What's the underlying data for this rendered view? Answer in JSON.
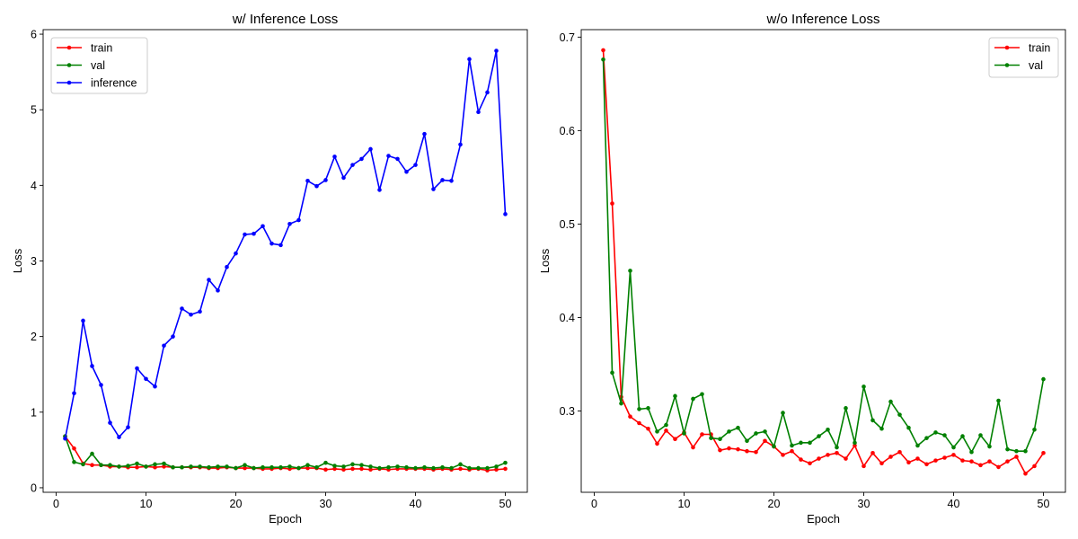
{
  "chart_data": [
    {
      "type": "line",
      "title": "w/ Inference Loss",
      "xlabel": "Epoch",
      "ylabel": "Loss",
      "xlim": [
        -1.45,
        52.45
      ],
      "ylim": [
        -0.06,
        6.06
      ],
      "xticks": [
        0,
        10,
        20,
        30,
        40,
        50
      ],
      "yticks": [
        0,
        1,
        2,
        3,
        4,
        5,
        6
      ],
      "grid": false,
      "legend_position": "top-left",
      "x": [
        1,
        2,
        3,
        4,
        5,
        6,
        7,
        8,
        9,
        10,
        11,
        12,
        13,
        14,
        15,
        16,
        17,
        18,
        19,
        20,
        21,
        22,
        23,
        24,
        25,
        26,
        27,
        28,
        29,
        30,
        31,
        32,
        33,
        34,
        35,
        36,
        37,
        38,
        39,
        40,
        41,
        42,
        43,
        44,
        45,
        46,
        47,
        48,
        49,
        50
      ],
      "series": [
        {
          "name": "train",
          "color": "#ff0000",
          "values": [
            0.68,
            0.52,
            0.32,
            0.3,
            0.3,
            0.28,
            0.28,
            0.27,
            0.27,
            0.28,
            0.27,
            0.28,
            0.27,
            0.27,
            0.27,
            0.27,
            0.26,
            0.26,
            0.27,
            0.26,
            0.26,
            0.26,
            0.25,
            0.25,
            0.26,
            0.25,
            0.26,
            0.26,
            0.26,
            0.24,
            0.25,
            0.24,
            0.25,
            0.25,
            0.24,
            0.25,
            0.24,
            0.25,
            0.25,
            0.25,
            0.25,
            0.24,
            0.25,
            0.24,
            0.25,
            0.24,
            0.25,
            0.23,
            0.24,
            0.25
          ]
        },
        {
          "name": "val",
          "color": "#008000",
          "values": [
            0.68,
            0.34,
            0.31,
            0.45,
            0.3,
            0.3,
            0.28,
            0.29,
            0.32,
            0.28,
            0.31,
            0.32,
            0.27,
            0.27,
            0.28,
            0.28,
            0.27,
            0.28,
            0.28,
            0.26,
            0.3,
            0.26,
            0.27,
            0.27,
            0.27,
            0.28,
            0.26,
            0.3,
            0.27,
            0.33,
            0.29,
            0.28,
            0.31,
            0.3,
            0.28,
            0.26,
            0.27,
            0.28,
            0.27,
            0.26,
            0.27,
            0.26,
            0.27,
            0.26,
            0.31,
            0.26,
            0.26,
            0.26,
            0.28,
            0.33
          ]
        },
        {
          "name": "inference",
          "color": "#0000ff",
          "values": [
            0.65,
            1.25,
            2.21,
            1.61,
            1.36,
            0.86,
            0.67,
            0.8,
            1.58,
            1.44,
            1.34,
            1.88,
            2.0,
            2.37,
            2.29,
            2.33,
            2.75,
            2.61,
            2.92,
            3.1,
            3.35,
            3.36,
            3.46,
            3.23,
            3.21,
            3.49,
            3.54,
            4.06,
            3.99,
            4.07,
            4.38,
            4.1,
            4.27,
            4.35,
            4.48,
            3.94,
            4.39,
            4.35,
            4.18,
            4.27,
            4.68,
            3.95,
            4.07,
            4.06,
            4.54,
            5.67,
            4.97,
            5.23,
            5.78,
            3.62
          ]
        }
      ]
    },
    {
      "type": "line",
      "title": "w/o Inference Loss",
      "xlabel": "Epoch",
      "ylabel": "Loss",
      "xlim": [
        -1.45,
        52.45
      ],
      "ylim": [
        0.213,
        0.708
      ],
      "xticks": [
        0,
        10,
        20,
        30,
        40,
        50
      ],
      "yticks": [
        0.3,
        0.4,
        0.5,
        0.6,
        0.7
      ],
      "grid": false,
      "legend_position": "top-right",
      "x": [
        1,
        2,
        3,
        4,
        5,
        6,
        7,
        8,
        9,
        10,
        11,
        12,
        13,
        14,
        15,
        16,
        17,
        18,
        19,
        20,
        21,
        22,
        23,
        24,
        25,
        26,
        27,
        28,
        29,
        30,
        31,
        32,
        33,
        34,
        35,
        36,
        37,
        38,
        39,
        40,
        41,
        42,
        43,
        44,
        45,
        46,
        47,
        48,
        49,
        50
      ],
      "series": [
        {
          "name": "train",
          "color": "#ff0000",
          "values": [
            0.686,
            0.522,
            0.315,
            0.294,
            0.287,
            0.281,
            0.265,
            0.279,
            0.27,
            0.277,
            0.261,
            0.275,
            0.275,
            0.258,
            0.26,
            0.259,
            0.257,
            0.256,
            0.268,
            0.262,
            0.253,
            0.257,
            0.248,
            0.244,
            0.249,
            0.253,
            0.255,
            0.249,
            0.263,
            0.241,
            0.255,
            0.244,
            0.251,
            0.256,
            0.245,
            0.249,
            0.243,
            0.247,
            0.25,
            0.253,
            0.247,
            0.246,
            0.242,
            0.246,
            0.24,
            0.246,
            0.251,
            0.233,
            0.241,
            0.255
          ]
        },
        {
          "name": "val",
          "color": "#008000",
          "values": [
            0.676,
            0.341,
            0.308,
            0.45,
            0.302,
            0.303,
            0.278,
            0.285,
            0.316,
            0.276,
            0.313,
            0.318,
            0.271,
            0.27,
            0.278,
            0.282,
            0.268,
            0.276,
            0.278,
            0.262,
            0.298,
            0.263,
            0.266,
            0.266,
            0.273,
            0.28,
            0.261,
            0.303,
            0.266,
            0.326,
            0.29,
            0.281,
            0.31,
            0.296,
            0.282,
            0.263,
            0.271,
            0.277,
            0.274,
            0.261,
            0.273,
            0.256,
            0.274,
            0.262,
            0.311,
            0.259,
            0.257,
            0.257,
            0.28,
            0.334
          ]
        }
      ]
    }
  ]
}
